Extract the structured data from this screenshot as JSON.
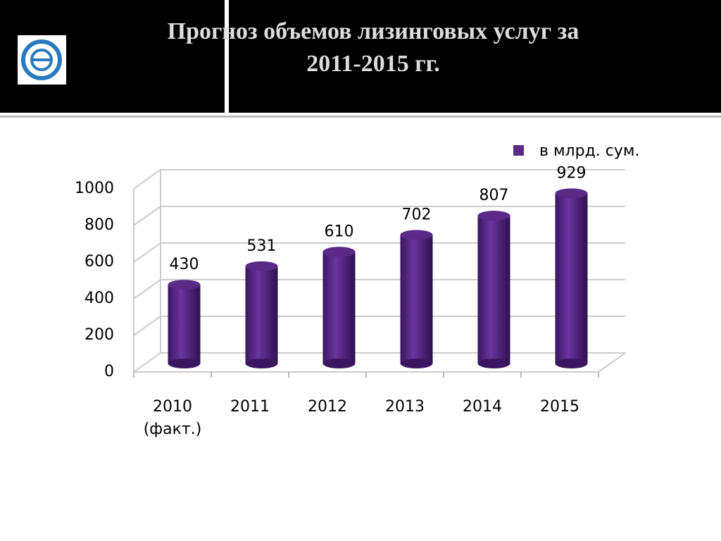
{
  "chart_data": {
    "type": "bar",
    "title": "Прогноз объемов лизинговых услуг за 2011-2015 гг.",
    "categories": [
      "2010 (факт.)",
      "2011",
      "2012",
      "2013",
      "2014",
      "2015"
    ],
    "series": [
      {
        "name": "в млрд. сум.",
        "color": "#5b2a86",
        "values": [
          430,
          531,
          610,
          702,
          807,
          929
        ]
      }
    ],
    "ylim": [
      0,
      1000
    ],
    "yticks": [
      0,
      200,
      400,
      600,
      800,
      1000
    ],
    "grid": true,
    "legend": "top-right"
  }
}
